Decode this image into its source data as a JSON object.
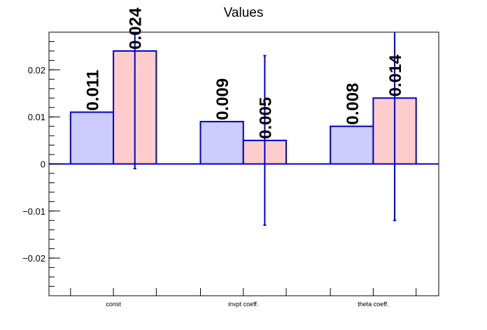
{
  "chart_data": {
    "type": "bar",
    "title": "Values",
    "xlabel": "",
    "ylabel": "",
    "categories": [
      "const",
      "invpt coeff.",
      "theta coeff."
    ],
    "series": [
      {
        "values": [
          0.011,
          0.009,
          0.008
        ],
        "labels": [
          "0.011",
          "0.009",
          "0.008"
        ],
        "fill": "#ccccff",
        "errors": null
      },
      {
        "values": [
          0.024,
          0.005,
          0.014
        ],
        "labels": [
          "0.024",
          "0.005",
          "0.014"
        ],
        "fill": "#ffcccc",
        "errors": [
          0.025,
          0.018,
          0.026
        ]
      }
    ],
    "ylim": [
      -0.028,
      0.028
    ],
    "yticks": [
      -0.02,
      -0.01,
      0,
      0.01,
      0.02
    ],
    "ytick_labels": [
      "−0.02",
      "−0.01",
      "0",
      "0.01",
      "0.02"
    ],
    "grid": false,
    "legend": "none",
    "colors": {
      "outline": "#0000cc",
      "axis": "#000000"
    }
  }
}
